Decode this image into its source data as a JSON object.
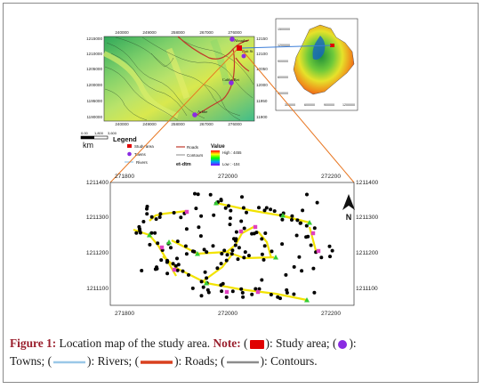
{
  "top_map": {
    "x_ticks": [
      "240000",
      "249000",
      "258000",
      "267000",
      "276000"
    ],
    "y_ticks_left": [
      "1215000",
      "1210000",
      "1205000",
      "1200000",
      "1195000",
      "1190000"
    ],
    "y_ticks_right": [
      "12150",
      "12100",
      "12050",
      "12000",
      "11950",
      "11900"
    ],
    "places": [
      "Abragha",
      "Bati St",
      "Cahba Bet",
      "Arbhe"
    ],
    "scale": {
      "labels": [
        "0.00",
        "1,800",
        "3,600"
      ],
      "unit": "km"
    }
  },
  "inset_map": {
    "x_ticks": [
      "300000",
      "600000",
      "900000",
      "1200000"
    ],
    "y_ticks": [
      "1500000",
      "1200000",
      "900000",
      "600000",
      "300000"
    ]
  },
  "legend": {
    "title": "Legend",
    "study_area": "Study area",
    "towns": "Towns",
    "rivers": "Rivers",
    "roads": "Roads",
    "contours": "Contours",
    "dem": "et-dtm",
    "value_title": "Value",
    "high": "High : 4455",
    "low": "Low : -104"
  },
  "detail_map": {
    "x_ticks": [
      "271800",
      "272000",
      "272200"
    ],
    "x_ticks_top": [
      "271800",
      "272000",
      "272200"
    ],
    "y_ticks": [
      "1211400",
      "1211300",
      "1211200",
      "1211100"
    ],
    "y_ticks_right": [
      "1211400",
      "1211300",
      "1211200",
      "1211100"
    ],
    "north": "N",
    "colors": {
      "points": "#000000",
      "roads": "#f2e300",
      "towns": "#e040c0",
      "markers": "#33cc33"
    }
  },
  "caption": {
    "label": "Figure 1:",
    "text": " Location map of the study area.",
    "note": "Note:",
    "study_area": "): Study area; (",
    "towns": "):",
    "line2_towns": "Towns; (",
    "rivers": "): Rivers; (",
    "roads": "): Roads; (",
    "contours": "): Contours."
  }
}
